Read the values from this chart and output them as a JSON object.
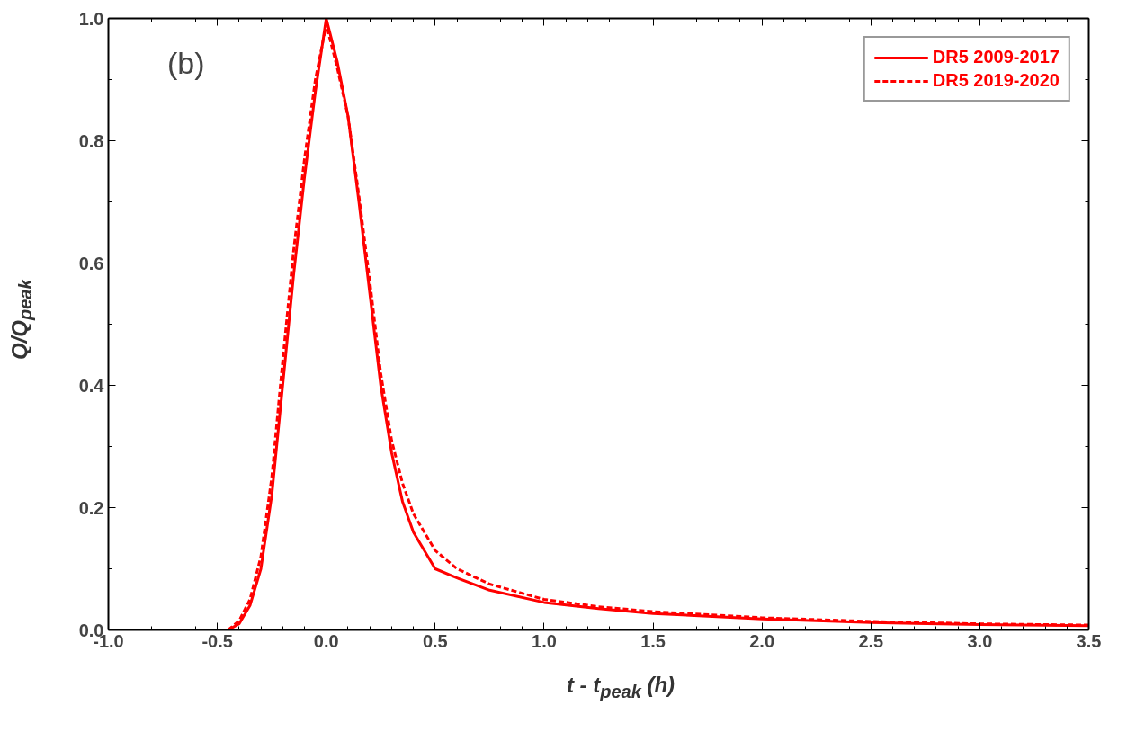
{
  "chart_data": {
    "type": "line",
    "xlabel": "t - t$_{peak}$ (h)",
    "ylabel": "Q/Q$_{peak}$",
    "annotations": [
      "(b)"
    ],
    "xlim": [
      -1.0,
      3.5
    ],
    "ylim": [
      0.0,
      1.0
    ],
    "xticks": [
      {
        "value": -1.0,
        "label": "-1.0"
      },
      {
        "value": -0.5,
        "label": "-0.5"
      },
      {
        "value": 0,
        "label": "0.0"
      },
      {
        "value": 0.5,
        "label": "0.5"
      },
      {
        "value": 1,
        "label": "1.0"
      },
      {
        "value": 1.5,
        "label": "1.5"
      },
      {
        "value": 2,
        "label": "2.0"
      },
      {
        "value": 2.5,
        "label": "2.5"
      },
      {
        "value": 3,
        "label": "3.0"
      },
      {
        "value": 3.5,
        "label": "3.5"
      }
    ],
    "yticks": [
      {
        "value": 0,
        "label": "0.0"
      },
      {
        "value": 0.2,
        "label": "0.2"
      },
      {
        "value": 0.4,
        "label": "0.4"
      },
      {
        "value": 0.6,
        "label": "0.6"
      },
      {
        "value": 0.8,
        "label": "0.8"
      },
      {
        "value": 1,
        "label": "1.0"
      }
    ],
    "grid": false,
    "legend": "top right",
    "x": [
      -0.45,
      -0.4,
      -0.35,
      -0.3,
      -0.25,
      -0.2,
      -0.15,
      -0.1,
      -0.05,
      0,
      0.05,
      0.1,
      0.15,
      0.2,
      0.25,
      0.3,
      0.35,
      0.4,
      0.5,
      0.6,
      0.75,
      1.0,
      1.25,
      1.5,
      2.0,
      2.5,
      3.0,
      3.5
    ],
    "series": [
      {
        "name": "DR5 2009-2017",
        "color": "#ff0000",
        "line_style": "solid",
        "values": [
          0,
          0.01,
          0.04,
          0.1,
          0.22,
          0.4,
          0.58,
          0.74,
          0.88,
          1.0,
          0.93,
          0.84,
          0.7,
          0.55,
          0.4,
          0.29,
          0.21,
          0.16,
          0.1,
          0.085,
          0.065,
          0.045,
          0.035,
          0.027,
          0.018,
          0.012,
          0.009,
          0.007
        ]
      },
      {
        "name": "DR5 2019-2020",
        "color": "#ff0000",
        "line_style": "dashed",
        "values": [
          0,
          0.015,
          0.05,
          0.12,
          0.25,
          0.44,
          0.62,
          0.77,
          0.9,
          0.99,
          0.92,
          0.84,
          0.71,
          0.57,
          0.42,
          0.31,
          0.24,
          0.19,
          0.13,
          0.1,
          0.075,
          0.05,
          0.038,
          0.03,
          0.02,
          0.014,
          0.01,
          0.008
        ]
      }
    ]
  }
}
